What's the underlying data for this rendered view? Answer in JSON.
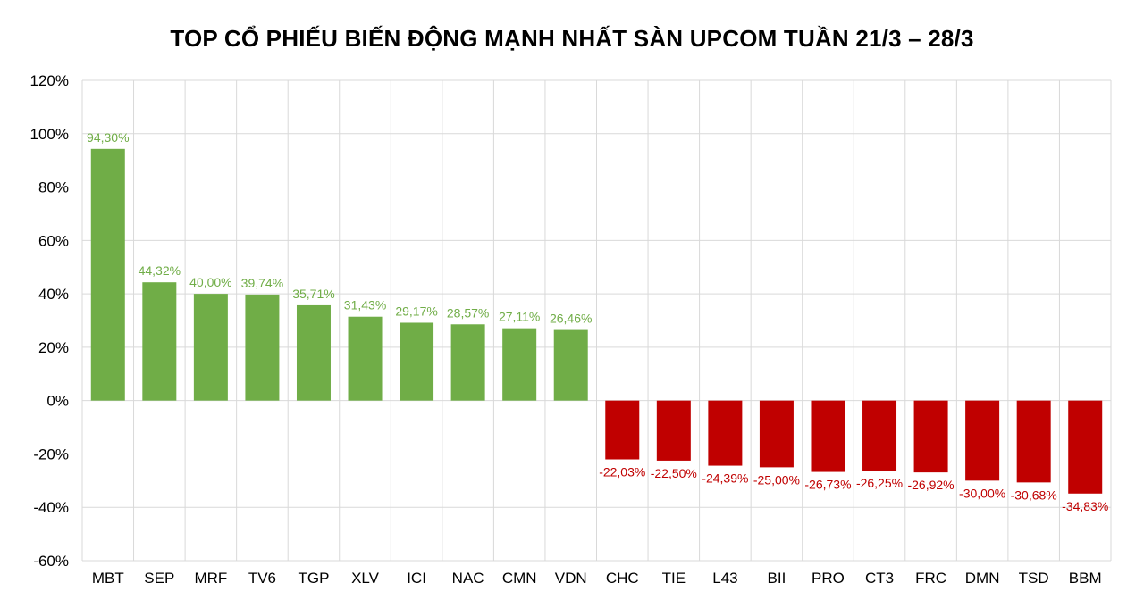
{
  "chart_data": {
    "type": "bar",
    "title": "TOP CỔ PHIẾU BIẾN ĐỘNG MẠNH NHẤT SÀN UPCOM TUẦN 21/3 – 28/3",
    "xlabel": "",
    "ylabel": "",
    "ylim": [
      -60,
      120
    ],
    "ytick_values": [
      120,
      100,
      80,
      60,
      40,
      20,
      0,
      -20,
      -40,
      -60
    ],
    "ytick_labels": [
      "120%",
      "100%",
      "80%",
      "60%",
      "40%",
      "20%",
      "0%",
      "-20%",
      "-40%",
      "-60%"
    ],
    "grid": true,
    "legend": "none",
    "colors": {
      "positive": "#70ad47",
      "negative": "#c00000",
      "positive_label": "#70ad47",
      "negative_label": "#c00000"
    },
    "categories": [
      "MBT",
      "SEP",
      "MRF",
      "TV6",
      "TGP",
      "XLV",
      "ICI",
      "NAC",
      "CMN",
      "VDN",
      "CHC",
      "TIE",
      "L43",
      "BII",
      "PRO",
      "CT3",
      "FRC",
      "DMN",
      "TSD",
      "BBM"
    ],
    "values": [
      94.3,
      44.32,
      40.0,
      39.74,
      35.71,
      31.43,
      29.17,
      28.57,
      27.11,
      26.46,
      -22.03,
      -22.5,
      -24.39,
      -25.0,
      -26.73,
      -26.25,
      -26.92,
      -30.0,
      -30.68,
      -34.83
    ],
    "data_labels": [
      "94,30%",
      "44,32%",
      "40,00%",
      "39,74%",
      "35,71%",
      "31,43%",
      "29,17%",
      "28,57%",
      "27,11%",
      "26,46%",
      "-22,03%",
      "-22,50%",
      "-24,39%",
      "-25,00%",
      "-26,73%",
      "-26,25%",
      "-26,92%",
      "-30,00%",
      "-30,68%",
      "-34,83%"
    ]
  }
}
